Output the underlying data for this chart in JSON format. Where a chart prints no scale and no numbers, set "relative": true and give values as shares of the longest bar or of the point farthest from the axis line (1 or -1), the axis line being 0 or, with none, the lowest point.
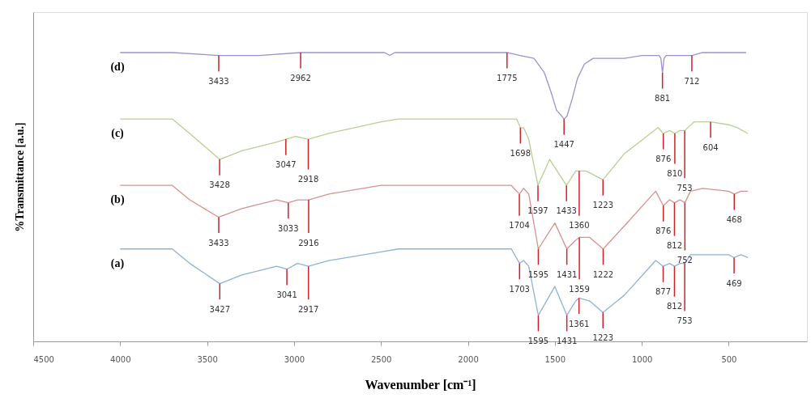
{
  "chart_data": {
    "type": "line",
    "relative": true,
    "xlabel": "Wavenumber [cm⁻¹]",
    "ylabel": "%Transmittance [a.u.]",
    "xlim": [
      4500,
      50
    ],
    "xticks": [
      4500,
      4000,
      3500,
      3000,
      2500,
      2000,
      1500,
      1000,
      500
    ],
    "grid": false,
    "tick_labels": "x",
    "series": [
      {
        "name": "(d)",
        "color": "#9d92cc",
        "x": [
          4000,
          3700,
          3433,
          3200,
          2962,
          2600,
          2480,
          2450,
          2420,
          2000,
          1800,
          1775,
          1700,
          1620,
          1560,
          1520,
          1490,
          1460,
          1447,
          1430,
          1400,
          1370,
          1330,
          1280,
          1200,
          1100,
          1000,
          900,
          890,
          881,
          872,
          860,
          800,
          712,
          650,
          400
        ],
        "values": [
          1.0,
          1.0,
          0.99,
          0.99,
          1.0,
          1.0,
          1.0,
          0.99,
          1.0,
          1.0,
          1.0,
          1.0,
          0.99,
          0.98,
          0.93,
          0.86,
          0.8,
          0.78,
          0.77,
          0.78,
          0.84,
          0.91,
          0.96,
          0.98,
          0.98,
          0.98,
          0.99,
          0.99,
          0.98,
          0.93,
          0.98,
          0.99,
          0.99,
          0.99,
          1.0,
          1.0
        ]
      },
      {
        "name": "(c)",
        "color": "#b9cf92",
        "x": [
          4000,
          3700,
          3600,
          3428,
          3300,
          3100,
          3047,
          2990,
          2918,
          2800,
          2500,
          2400,
          1800,
          1720,
          1698,
          1680,
          1650,
          1597,
          1530,
          1433,
          1380,
          1360,
          1320,
          1223,
          1100,
          907,
          876,
          840,
          810,
          780,
          753,
          700,
          650,
          604,
          500,
          450,
          390
        ],
        "values": [
          0.77,
          0.77,
          0.72,
          0.63,
          0.66,
          0.69,
          0.7,
          0.71,
          0.7,
          0.72,
          0.76,
          0.77,
          0.77,
          0.77,
          0.74,
          0.74,
          0.7,
          0.54,
          0.63,
          0.54,
          0.59,
          0.59,
          0.59,
          0.56,
          0.65,
          0.74,
          0.72,
          0.73,
          0.72,
          0.73,
          0.73,
          0.76,
          0.76,
          0.76,
          0.75,
          0.74,
          0.72
        ]
      },
      {
        "name": "(b)",
        "color": "#d9918f",
        "x": [
          4000,
          3700,
          3600,
          3433,
          3300,
          3100,
          3033,
          2980,
          2916,
          2800,
          2500,
          2400,
          1750,
          1704,
          1680,
          1650,
          1595,
          1500,
          1431,
          1380,
          1359,
          1300,
          1222,
          1100,
          920,
          876,
          840,
          812,
          780,
          752,
          720,
          650,
          500,
          468,
          430,
          390
        ],
        "values": [
          0.54,
          0.54,
          0.49,
          0.43,
          0.46,
          0.49,
          0.48,
          0.49,
          0.49,
          0.51,
          0.54,
          0.54,
          0.54,
          0.51,
          0.53,
          0.51,
          0.32,
          0.41,
          0.32,
          0.35,
          0.36,
          0.36,
          0.32,
          0.4,
          0.52,
          0.47,
          0.49,
          0.48,
          0.49,
          0.48,
          0.52,
          0.53,
          0.52,
          0.51,
          0.52,
          0.52
        ]
      },
      {
        "name": "(a)",
        "color": "#90b1d9",
        "x": [
          4000,
          3700,
          3600,
          3427,
          3300,
          3100,
          3041,
          2980,
          2917,
          2800,
          2500,
          2400,
          1750,
          1703,
          1680,
          1650,
          1595,
          1500,
          1431,
          1380,
          1361,
          1300,
          1223,
          1100,
          920,
          877,
          840,
          812,
          780,
          753,
          720,
          650,
          500,
          469,
          430,
          390
        ],
        "values": [
          0.32,
          0.32,
          0.27,
          0.2,
          0.23,
          0.26,
          0.25,
          0.27,
          0.26,
          0.28,
          0.31,
          0.32,
          0.32,
          0.27,
          0.28,
          0.26,
          0.09,
          0.19,
          0.09,
          0.14,
          0.15,
          0.14,
          0.1,
          0.16,
          0.28,
          0.26,
          0.27,
          0.26,
          0.27,
          0.27,
          0.3,
          0.3,
          0.3,
          0.29,
          0.3,
          0.29
        ]
      }
    ],
    "annotations": [
      {
        "text": "3433",
        "x": 3433,
        "y": 0.99
      },
      {
        "text": "2962",
        "x": 2962,
        "y": 1.0
      },
      {
        "text": "1775",
        "x": 1775,
        "y": 1.0
      },
      {
        "text": "1447",
        "x": 1447,
        "y": 0.77
      },
      {
        "text": "881",
        "x": 881,
        "y": 0.93
      },
      {
        "text": "712",
        "x": 712,
        "y": 0.99
      },
      {
        "text": "3428",
        "x": 3428,
        "y": 0.63
      },
      {
        "text": "3047",
        "x": 3047,
        "y": 0.7
      },
      {
        "text": "2918",
        "x": 2918,
        "y": 0.7
      },
      {
        "text": "1698",
        "x": 1698,
        "y": 0.74
      },
      {
        "text": "1597",
        "x": 1597,
        "y": 0.54
      },
      {
        "text": "1433",
        "x": 1433,
        "y": 0.54
      },
      {
        "text": "1360",
        "x": 1360,
        "y": 0.59
      },
      {
        "text": "1223",
        "x": 1223,
        "y": 0.56
      },
      {
        "text": "876",
        "x": 876,
        "y": 0.72
      },
      {
        "text": "810",
        "x": 810,
        "y": 0.72
      },
      {
        "text": "753",
        "x": 753,
        "y": 0.73
      },
      {
        "text": "604",
        "x": 604,
        "y": 0.76
      },
      {
        "text": "3433",
        "x": 3433,
        "y": 0.43
      },
      {
        "text": "3033",
        "x": 3033,
        "y": 0.48
      },
      {
        "text": "2916",
        "x": 2916,
        "y": 0.49
      },
      {
        "text": "1704",
        "x": 1704,
        "y": 0.51
      },
      {
        "text": "1595",
        "x": 1595,
        "y": 0.32
      },
      {
        "text": "1431",
        "x": 1431,
        "y": 0.32
      },
      {
        "text": "1359",
        "x": 1359,
        "y": 0.36
      },
      {
        "text": "1222",
        "x": 1222,
        "y": 0.32
      },
      {
        "text": "876",
        "x": 876,
        "y": 0.47
      },
      {
        "text": "812",
        "x": 812,
        "y": 0.48
      },
      {
        "text": "752",
        "x": 752,
        "y": 0.48
      },
      {
        "text": "468",
        "x": 468,
        "y": 0.51
      },
      {
        "text": "3427",
        "x": 3427,
        "y": 0.2
      },
      {
        "text": "3041",
        "x": 3041,
        "y": 0.25
      },
      {
        "text": "2917",
        "x": 2917,
        "y": 0.26
      },
      {
        "text": "1703",
        "x": 1703,
        "y": 0.27
      },
      {
        "text": "1595",
        "x": 1595,
        "y": 0.09
      },
      {
        "text": "1431",
        "x": 1431,
        "y": 0.09
      },
      {
        "text": "1361",
        "x": 1361,
        "y": 0.15
      },
      {
        "text": "1223",
        "x": 1223,
        "y": 0.1
      },
      {
        "text": "877",
        "x": 877,
        "y": 0.26
      },
      {
        "text": "812",
        "x": 812,
        "y": 0.26
      },
      {
        "text": "753",
        "x": 753,
        "y": 0.27
      },
      {
        "text": "469",
        "x": 469,
        "y": 0.29
      }
    ]
  }
}
